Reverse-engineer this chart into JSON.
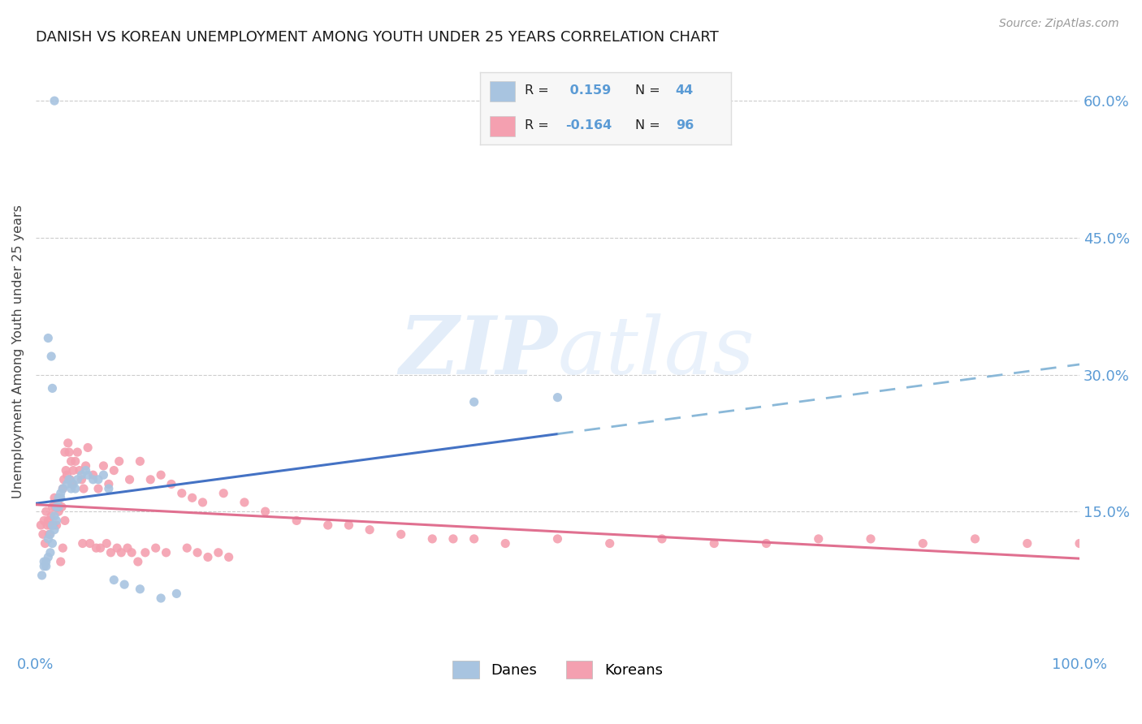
{
  "title": "DANISH VS KOREAN UNEMPLOYMENT AMONG YOUTH UNDER 25 YEARS CORRELATION CHART",
  "source": "Source: ZipAtlas.com",
  "ylabel": "Unemployment Among Youth under 25 years",
  "xlim": [
    0,
    1.0
  ],
  "ylim": [
    0,
    0.65
  ],
  "ytick_positions": [
    0.15,
    0.3,
    0.45,
    0.6
  ],
  "ytick_labels": [
    "15.0%",
    "30.0%",
    "45.0%",
    "60.0%"
  ],
  "danes_color": "#a8c4e0",
  "koreans_color": "#f4a0b0",
  "danes_line_solid_color": "#4472c4",
  "danes_line_dash_color": "#8ab8d8",
  "koreans_line_color": "#e07090",
  "background": "#ffffff",
  "watermark": "ZIPatlas",
  "watermark_zip_color": "#c8ddf0",
  "watermark_atlas_color": "#c8ddf0",
  "legend_box_bg": "#f7f7f7",
  "legend_box_border": "#dddddd",
  "danes_x": [
    0.018,
    0.012,
    0.015,
    0.016,
    0.008,
    0.01,
    0.012,
    0.014,
    0.016,
    0.018,
    0.02,
    0.022,
    0.024,
    0.006,
    0.008,
    0.01,
    0.012,
    0.014,
    0.016,
    0.018,
    0.02,
    0.022,
    0.024,
    0.026,
    0.03,
    0.032,
    0.034,
    0.036,
    0.038,
    0.04,
    0.044,
    0.048,
    0.05,
    0.055,
    0.06,
    0.065,
    0.07,
    0.075,
    0.085,
    0.1,
    0.12,
    0.135,
    0.5,
    0.42
  ],
  "danes_y": [
    0.6,
    0.34,
    0.32,
    0.285,
    0.095,
    0.09,
    0.1,
    0.105,
    0.115,
    0.13,
    0.14,
    0.155,
    0.165,
    0.08,
    0.09,
    0.095,
    0.12,
    0.125,
    0.135,
    0.145,
    0.155,
    0.165,
    0.17,
    0.175,
    0.18,
    0.185,
    0.175,
    0.18,
    0.175,
    0.185,
    0.19,
    0.195,
    0.19,
    0.185,
    0.185,
    0.19,
    0.175,
    0.075,
    0.07,
    0.065,
    0.055,
    0.06,
    0.275,
    0.27
  ],
  "koreans_x": [
    0.005,
    0.007,
    0.008,
    0.009,
    0.01,
    0.011,
    0.012,
    0.013,
    0.014,
    0.015,
    0.016,
    0.017,
    0.018,
    0.019,
    0.02,
    0.021,
    0.022,
    0.023,
    0.025,
    0.026,
    0.027,
    0.028,
    0.029,
    0.03,
    0.031,
    0.032,
    0.033,
    0.034,
    0.035,
    0.036,
    0.038,
    0.04,
    0.042,
    0.044,
    0.046,
    0.048,
    0.05,
    0.055,
    0.06,
    0.065,
    0.07,
    0.075,
    0.08,
    0.09,
    0.1,
    0.11,
    0.12,
    0.13,
    0.14,
    0.15,
    0.16,
    0.18,
    0.2,
    0.22,
    0.25,
    0.28,
    0.3,
    0.32,
    0.35,
    0.38,
    0.4,
    0.42,
    0.45,
    0.5,
    0.55,
    0.6,
    0.65,
    0.7,
    0.75,
    0.8,
    0.85,
    0.9,
    0.95,
    1.0,
    0.024,
    0.026,
    0.028,
    0.045,
    0.052,
    0.058,
    0.062,
    0.068,
    0.072,
    0.078,
    0.082,
    0.088,
    0.092,
    0.098,
    0.105,
    0.115,
    0.125,
    0.145,
    0.155,
    0.165,
    0.175,
    0.185
  ],
  "koreans_y": [
    0.135,
    0.125,
    0.14,
    0.115,
    0.15,
    0.135,
    0.14,
    0.125,
    0.135,
    0.145,
    0.155,
    0.135,
    0.165,
    0.155,
    0.135,
    0.16,
    0.15,
    0.165,
    0.155,
    0.175,
    0.185,
    0.215,
    0.195,
    0.19,
    0.225,
    0.215,
    0.185,
    0.205,
    0.18,
    0.195,
    0.205,
    0.215,
    0.195,
    0.185,
    0.175,
    0.2,
    0.22,
    0.19,
    0.175,
    0.2,
    0.18,
    0.195,
    0.205,
    0.185,
    0.205,
    0.185,
    0.19,
    0.18,
    0.17,
    0.165,
    0.16,
    0.17,
    0.16,
    0.15,
    0.14,
    0.135,
    0.135,
    0.13,
    0.125,
    0.12,
    0.12,
    0.12,
    0.115,
    0.12,
    0.115,
    0.12,
    0.115,
    0.115,
    0.12,
    0.12,
    0.115,
    0.12,
    0.115,
    0.115,
    0.095,
    0.11,
    0.14,
    0.115,
    0.115,
    0.11,
    0.11,
    0.115,
    0.105,
    0.11,
    0.105,
    0.11,
    0.105,
    0.095,
    0.105,
    0.11,
    0.105,
    0.11,
    0.105,
    0.1,
    0.105,
    0.1
  ]
}
